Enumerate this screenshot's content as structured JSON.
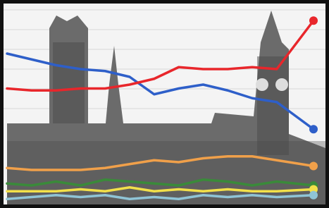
{
  "chart_data": {
    "type": "line",
    "x": [
      0,
      8,
      16,
      24,
      32,
      40,
      48,
      56,
      64,
      72,
      80,
      88,
      100
    ],
    "xlim": [
      0,
      100
    ],
    "ylim": [
      0,
      100
    ],
    "series": [
      {
        "color": "#2e5fc9",
        "values": [
          76,
          73,
          70,
          68,
          67,
          64,
          55,
          58,
          60,
          57,
          53,
          51,
          37
        ]
      },
      {
        "color": "#e8262b",
        "values": [
          58,
          57,
          57,
          58,
          58,
          60,
          63,
          69,
          68,
          68,
          69,
          68,
          93
        ]
      },
      {
        "color": "#f0a04a",
        "values": [
          17,
          16,
          16,
          16,
          17,
          19,
          21,
          20,
          22,
          23,
          23,
          21,
          18
        ]
      },
      {
        "color": "#3a8a3a",
        "values": [
          9,
          8,
          10,
          8,
          11,
          10,
          9,
          8,
          11,
          10,
          8,
          10,
          8
        ]
      },
      {
        "color": "#f2e04a",
        "values": [
          5,
          5,
          5,
          6,
          5,
          7,
          5,
          6,
          5,
          6,
          5,
          5,
          6
        ]
      },
      {
        "color": "#8fc4d6",
        "values": [
          1,
          2,
          3,
          2,
          3,
          1,
          2,
          1,
          3,
          2,
          3,
          2,
          3
        ]
      }
    ]
  }
}
